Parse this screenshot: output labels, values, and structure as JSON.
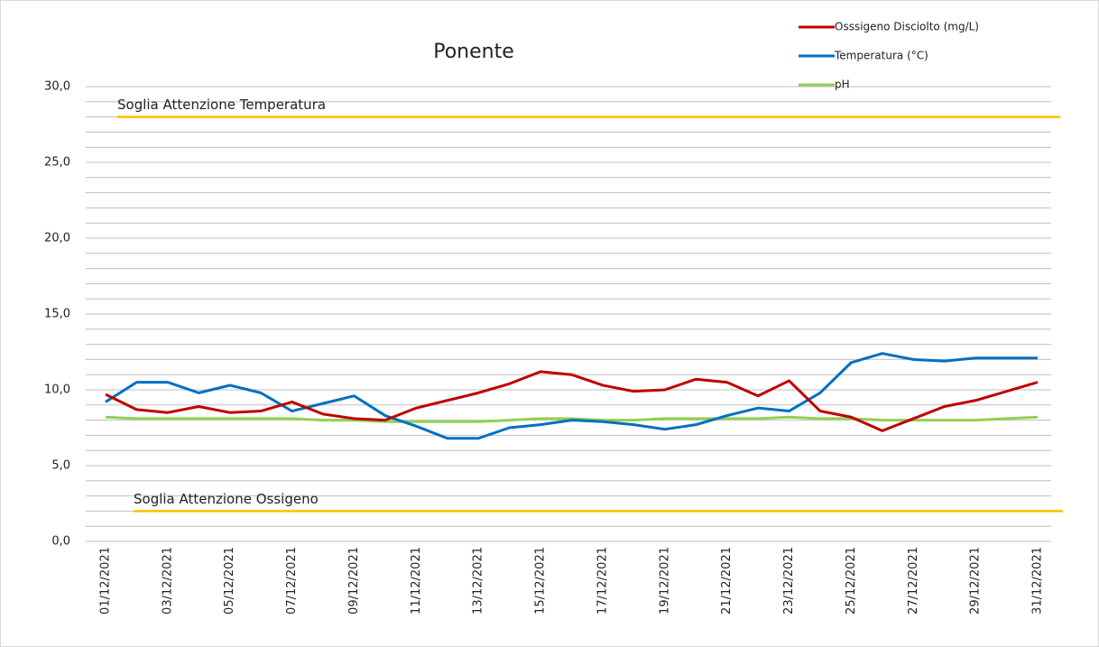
{
  "chart_data": {
    "type": "line",
    "title": "Ponente",
    "categories": [
      "01/12/2021",
      null,
      "03/12/2021",
      null,
      "05/12/2021",
      null,
      "07/12/2021",
      null,
      "09/12/2021",
      null,
      "11/12/2021",
      null,
      "13/12/2021",
      null,
      "15/12/2021",
      null,
      "17/12/2021",
      null,
      "19/12/2021",
      null,
      "21/12/2021",
      null,
      "23/12/2021",
      null,
      "25/12/2021",
      null,
      "27/12/2021",
      null,
      "29/12/2021",
      null,
      "31/12/2021"
    ],
    "series": [
      {
        "name": "Osssigeno Disciolto (mg/L)",
        "color": "#c00000",
        "values": [
          9.7,
          8.7,
          8.5,
          8.9,
          8.5,
          8.6,
          9.2,
          8.4,
          8.1,
          8.0,
          8.8,
          9.3,
          9.8,
          10.4,
          11.2,
          11.0,
          10.3,
          9.9,
          10.0,
          10.7,
          10.5,
          9.6,
          10.6,
          8.6,
          8.2,
          7.3,
          8.1,
          8.9,
          9.3,
          9.9,
          10.5
        ]
      },
      {
        "name": "Temperatura (°C)",
        "color": "#0070c0",
        "values": [
          9.2,
          10.5,
          10.5,
          9.8,
          10.3,
          9.8,
          8.6,
          9.1,
          9.6,
          8.3,
          7.6,
          6.8,
          6.8,
          7.5,
          7.7,
          8.0,
          7.9,
          7.7,
          7.4,
          7.7,
          8.3,
          8.8,
          8.6,
          9.8,
          11.8,
          12.4,
          12.0,
          11.9,
          12.1,
          12.1,
          12.1
        ]
      },
      {
        "name": "pH",
        "color": "#92d050",
        "values": [
          8.2,
          8.1,
          8.1,
          8.1,
          8.1,
          8.1,
          8.1,
          8.0,
          8.0,
          7.9,
          7.9,
          7.9,
          7.9,
          8.0,
          8.1,
          8.1,
          8.0,
          8.0,
          8.1,
          8.1,
          8.1,
          8.1,
          8.2,
          8.1,
          8.1,
          8.0,
          8.0,
          8.0,
          8.0,
          8.1,
          8.2
        ]
      }
    ],
    "thresholds": [
      {
        "label": "Soglia Attenzione Temperatura",
        "value": 28,
        "color": "#ffc000",
        "label_color": "#f4b183"
      },
      {
        "label": "Soglia Attenzione Ossigeno",
        "value": 2,
        "color": "#ffc000",
        "label_color": "#f4b183"
      }
    ],
    "ylim": [
      0,
      30
    ],
    "yticks": [
      {
        "value": 0,
        "label": "0,0"
      },
      {
        "value": 5,
        "label": "5,0"
      },
      {
        "value": 10,
        "label": "10,0"
      },
      {
        "value": 15,
        "label": "15,0"
      },
      {
        "value": 20,
        "label": "20,0"
      },
      {
        "value": 25,
        "label": "25,0"
      },
      {
        "value": 30,
        "label": "30,0"
      }
    ],
    "ygrid": [
      0,
      1,
      2,
      3,
      4,
      5,
      6,
      7,
      8,
      9,
      10,
      11,
      12,
      13,
      14,
      15,
      16,
      17,
      18,
      19,
      20,
      21,
      22,
      23,
      24,
      25,
      26,
      27,
      28,
      29,
      30
    ],
    "legend": "top-right"
  }
}
